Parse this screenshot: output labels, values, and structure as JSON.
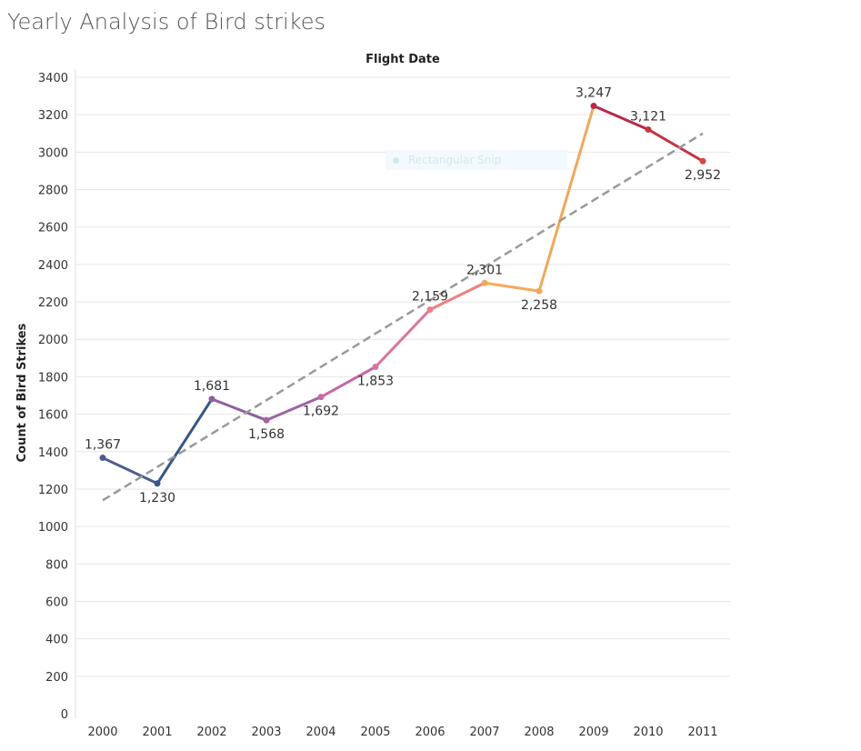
{
  "page": {
    "title": "Yearly Analysis of Bird strikes"
  },
  "overlay": {
    "label": "Rectangular Snip"
  },
  "colors": {
    "gridline": "#e6e6e6",
    "trendline": "#999999",
    "series_gradient": [
      "#4e5d8c",
      "#355784",
      "#8c5fa0",
      "#a064a3",
      "#c46aa6",
      "#d9749f",
      "#ee8080",
      "#f4aa5b",
      "#f0a85a",
      "#b8284a",
      "#c33343",
      "#d44a3c"
    ]
  },
  "chart_data": {
    "type": "line",
    "title": "Flight Date",
    "xlabel": "Flight Date",
    "ylabel": "Count of Bird Strikes",
    "categories": [
      "2000",
      "2001",
      "2002",
      "2003",
      "2004",
      "2005",
      "2006",
      "2007",
      "2008",
      "2009",
      "2010",
      "2011"
    ],
    "series": [
      {
        "values": [
          1367,
          1230,
          1681,
          1568,
          1692,
          1853,
          2159,
          2301,
          2258,
          3247,
          3121,
          2952
        ]
      }
    ],
    "data_labels": [
      "1,367",
      "1,230",
      "1,681",
      "1,568",
      "1,692",
      "1,853",
      "2,159",
      "2,301",
      "2,258",
      "3,247",
      "3,121",
      "2,952"
    ],
    "trendline": {
      "type": "linear",
      "style": "dashed",
      "start": 1140,
      "end": 3100
    },
    "ylim": [
      0,
      3400
    ],
    "yticks": [
      0,
      200,
      400,
      600,
      800,
      1000,
      1200,
      1400,
      1600,
      1800,
      2000,
      2200,
      2400,
      2600,
      2800,
      3000,
      3200,
      3400
    ],
    "grid": true,
    "legend": "none"
  }
}
